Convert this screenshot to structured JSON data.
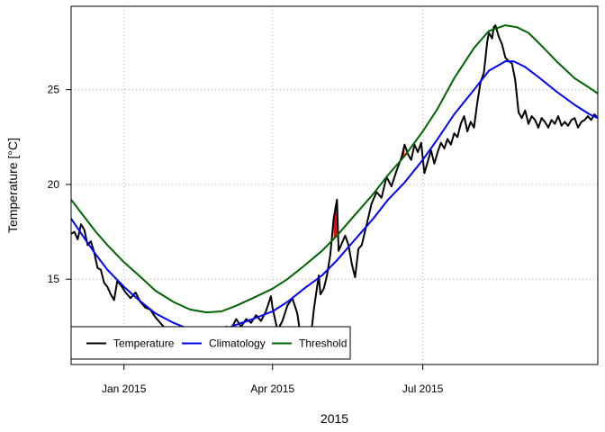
{
  "chart_data": {
    "type": "line",
    "title": "",
    "xlabel": "2015",
    "ylabel": "Temperature [°C]",
    "xlim": [
      "2014-11-30",
      "2015-10-15"
    ],
    "ylim": [
      10.5,
      29.4
    ],
    "grid": true,
    "legend_position": "bottom-left",
    "x_ticks": [
      {
        "date": "2015-01-01",
        "label": "Jan 2015"
      },
      {
        "date": "2015-04-01",
        "label": "Apr 2015"
      },
      {
        "date": "2015-07-01",
        "label": "Jul 2015"
      }
    ],
    "y_ticks": [
      15,
      20,
      25
    ],
    "highlight_color": "#ff0000",
    "series": [
      {
        "name": "Temperature",
        "color": "#000000",
        "points": [
          [
            "2014-11-30",
            17.4
          ],
          [
            "2014-12-02",
            17.5
          ],
          [
            "2014-12-04",
            17.1
          ],
          [
            "2014-12-06",
            17.9
          ],
          [
            "2014-12-08",
            17.6
          ],
          [
            "2014-12-10",
            16.8
          ],
          [
            "2014-12-12",
            17.0
          ],
          [
            "2014-12-14",
            16.4
          ],
          [
            "2014-12-16",
            15.6
          ],
          [
            "2014-12-18",
            15.5
          ],
          [
            "2014-12-20",
            14.8
          ],
          [
            "2014-12-22",
            14.6
          ],
          [
            "2014-12-24",
            14.2
          ],
          [
            "2014-12-26",
            13.9
          ],
          [
            "2014-12-28",
            14.9
          ],
          [
            "2014-12-30",
            14.7
          ],
          [
            "2015-01-02",
            14.3
          ],
          [
            "2015-01-05",
            14.0
          ],
          [
            "2015-01-08",
            14.3
          ],
          [
            "2015-01-11",
            13.8
          ],
          [
            "2015-01-14",
            13.5
          ],
          [
            "2015-01-17",
            13.4
          ],
          [
            "2015-01-20",
            13.0
          ],
          [
            "2015-01-23",
            12.7
          ],
          [
            "2015-01-26",
            12.4
          ],
          [
            "2015-01-29",
            12.1
          ],
          [
            "2015-02-01",
            11.8
          ],
          [
            "2015-02-10",
            11.8
          ],
          [
            "2015-02-20",
            11.8
          ],
          [
            "2015-03-01",
            11.8
          ],
          [
            "2015-03-04",
            12.5
          ],
          [
            "2015-03-07",
            12.4
          ],
          [
            "2015-03-10",
            12.9
          ],
          [
            "2015-03-13",
            12.5
          ],
          [
            "2015-03-16",
            12.9
          ],
          [
            "2015-03-19",
            12.7
          ],
          [
            "2015-03-22",
            13.1
          ],
          [
            "2015-03-25",
            12.8
          ],
          [
            "2015-03-28",
            13.3
          ],
          [
            "2015-03-31",
            14.1
          ],
          [
            "2015-04-01",
            13.5
          ],
          [
            "2015-04-04",
            12.3
          ],
          [
            "2015-04-07",
            12.8
          ],
          [
            "2015-04-10",
            13.6
          ],
          [
            "2015-04-13",
            14.0
          ],
          [
            "2015-04-16",
            13.2
          ],
          [
            "2015-04-18",
            12.0
          ],
          [
            "2015-04-20",
            12.3
          ],
          [
            "2015-04-22",
            11.9
          ],
          [
            "2015-04-24",
            11.8
          ],
          [
            "2015-04-26",
            13.4
          ],
          [
            "2015-04-28",
            14.6
          ],
          [
            "2015-04-29",
            15.2
          ],
          [
            "2015-04-30",
            14.2
          ],
          [
            "2015-05-02",
            14.5
          ],
          [
            "2015-05-04",
            15.2
          ],
          [
            "2015-05-06",
            16.3
          ],
          [
            "2015-05-08",
            18.2
          ],
          [
            "2015-05-10",
            19.2
          ],
          [
            "2015-05-11",
            16.5
          ],
          [
            "2015-05-13",
            16.9
          ],
          [
            "2015-05-15",
            17.3
          ],
          [
            "2015-05-17",
            16.8
          ],
          [
            "2015-05-19",
            15.8
          ],
          [
            "2015-05-21",
            15.1
          ],
          [
            "2015-05-23",
            16.6
          ],
          [
            "2015-05-25",
            16.8
          ],
          [
            "2015-05-28",
            17.9
          ],
          [
            "2015-05-31",
            19.0
          ],
          [
            "2015-06-03",
            19.6
          ],
          [
            "2015-06-06",
            19.3
          ],
          [
            "2015-06-09",
            20.4
          ],
          [
            "2015-06-12",
            19.9
          ],
          [
            "2015-06-15",
            20.7
          ],
          [
            "2015-06-18",
            21.4
          ],
          [
            "2015-06-20",
            22.1
          ],
          [
            "2015-06-22",
            21.6
          ],
          [
            "2015-06-24",
            21.3
          ],
          [
            "2015-06-26",
            22.1
          ],
          [
            "2015-06-28",
            21.7
          ],
          [
            "2015-06-30",
            22.2
          ],
          [
            "2015-07-02",
            20.6
          ],
          [
            "2015-07-04",
            21.2
          ],
          [
            "2015-07-06",
            21.8
          ],
          [
            "2015-07-08",
            21.1
          ],
          [
            "2015-07-10",
            21.7
          ],
          [
            "2015-07-12",
            22.2
          ],
          [
            "2015-07-14",
            21.9
          ],
          [
            "2015-07-16",
            22.4
          ],
          [
            "2015-07-18",
            22.1
          ],
          [
            "2015-07-20",
            22.7
          ],
          [
            "2015-07-22",
            22.5
          ],
          [
            "2015-07-24",
            23.2
          ],
          [
            "2015-07-26",
            23.6
          ],
          [
            "2015-07-28",
            22.8
          ],
          [
            "2015-07-30",
            23.3
          ],
          [
            "2015-08-01",
            23.0
          ],
          [
            "2015-08-03",
            24.3
          ],
          [
            "2015-08-05",
            25.4
          ],
          [
            "2015-08-07",
            25.9
          ],
          [
            "2015-08-09",
            27.5
          ],
          [
            "2015-08-10",
            28.0
          ],
          [
            "2015-08-12",
            27.7
          ],
          [
            "2015-08-13",
            28.3
          ],
          [
            "2015-08-14",
            28.4
          ],
          [
            "2015-08-16",
            27.8
          ],
          [
            "2015-08-18",
            27.4
          ],
          [
            "2015-08-20",
            26.7
          ],
          [
            "2015-08-22",
            26.5
          ],
          [
            "2015-08-24",
            26.4
          ],
          [
            "2015-08-26",
            25.5
          ],
          [
            "2015-08-28",
            23.8
          ],
          [
            "2015-08-30",
            23.5
          ],
          [
            "2015-09-01",
            23.9
          ],
          [
            "2015-09-03",
            23.2
          ],
          [
            "2015-09-05",
            23.6
          ],
          [
            "2015-09-07",
            23.4
          ],
          [
            "2015-09-09",
            23.0
          ],
          [
            "2015-09-11",
            23.5
          ],
          [
            "2015-09-13",
            23.3
          ],
          [
            "2015-09-15",
            23.0
          ],
          [
            "2015-09-17",
            23.4
          ],
          [
            "2015-09-19",
            23.2
          ],
          [
            "2015-09-21",
            23.6
          ],
          [
            "2015-09-23",
            23.1
          ],
          [
            "2015-09-25",
            23.3
          ],
          [
            "2015-09-27",
            23.1
          ],
          [
            "2015-09-29",
            23.4
          ],
          [
            "2015-10-01",
            23.5
          ],
          [
            "2015-10-03",
            23.0
          ],
          [
            "2015-10-05",
            23.3
          ],
          [
            "2015-10-07",
            23.4
          ],
          [
            "2015-10-09",
            23.6
          ],
          [
            "2015-10-11",
            23.4
          ],
          [
            "2015-10-13",
            23.7
          ],
          [
            "2015-10-15",
            23.5
          ]
        ]
      },
      {
        "name": "Climatology",
        "color": "#0000ff",
        "points": [
          [
            "2014-11-30",
            18.2
          ],
          [
            "2014-12-07",
            17.3
          ],
          [
            "2014-12-15",
            16.3
          ],
          [
            "2014-12-22",
            15.5
          ],
          [
            "2015-01-01",
            14.6
          ],
          [
            "2015-01-10",
            13.9
          ],
          [
            "2015-01-20",
            13.2
          ],
          [
            "2015-01-31",
            12.7
          ],
          [
            "2015-02-10",
            12.35
          ],
          [
            "2015-02-20",
            12.2
          ],
          [
            "2015-03-01",
            12.3
          ],
          [
            "2015-03-10",
            12.6
          ],
          [
            "2015-03-20",
            12.9
          ],
          [
            "2015-04-01",
            13.3
          ],
          [
            "2015-04-10",
            13.8
          ],
          [
            "2015-04-20",
            14.5
          ],
          [
            "2015-05-01",
            15.2
          ],
          [
            "2015-05-10",
            16.0
          ],
          [
            "2015-05-20",
            17.0
          ],
          [
            "2015-06-01",
            18.2
          ],
          [
            "2015-06-10",
            19.2
          ],
          [
            "2015-06-20",
            20.1
          ],
          [
            "2015-07-01",
            21.3
          ],
          [
            "2015-07-10",
            22.4
          ],
          [
            "2015-07-20",
            23.7
          ],
          [
            "2015-08-01",
            25.0
          ],
          [
            "2015-08-10",
            26.0
          ],
          [
            "2015-08-20",
            26.5
          ],
          [
            "2015-08-25",
            26.5
          ],
          [
            "2015-09-01",
            26.2
          ],
          [
            "2015-09-10",
            25.6
          ],
          [
            "2015-09-20",
            24.9
          ],
          [
            "2015-10-01",
            24.2
          ],
          [
            "2015-10-10",
            23.7
          ],
          [
            "2015-10-15",
            23.5
          ]
        ]
      },
      {
        "name": "Threshold",
        "color": "#006400",
        "points": [
          [
            "2014-11-30",
            19.2
          ],
          [
            "2014-12-07",
            18.4
          ],
          [
            "2014-12-15",
            17.5
          ],
          [
            "2014-12-22",
            16.8
          ],
          [
            "2015-01-01",
            15.9
          ],
          [
            "2015-01-10",
            15.2
          ],
          [
            "2015-01-20",
            14.4
          ],
          [
            "2015-01-31",
            13.8
          ],
          [
            "2015-02-10",
            13.4
          ],
          [
            "2015-02-20",
            13.25
          ],
          [
            "2015-03-01",
            13.3
          ],
          [
            "2015-03-10",
            13.6
          ],
          [
            "2015-03-20",
            14.0
          ],
          [
            "2015-04-01",
            14.5
          ],
          [
            "2015-04-10",
            15.0
          ],
          [
            "2015-04-20",
            15.7
          ],
          [
            "2015-05-01",
            16.5
          ],
          [
            "2015-05-10",
            17.3
          ],
          [
            "2015-05-20",
            18.3
          ],
          [
            "2015-06-01",
            19.5
          ],
          [
            "2015-06-10",
            20.5
          ],
          [
            "2015-06-20",
            21.5
          ],
          [
            "2015-07-01",
            22.8
          ],
          [
            "2015-07-10",
            24.0
          ],
          [
            "2015-07-20",
            25.6
          ],
          [
            "2015-08-01",
            27.2
          ],
          [
            "2015-08-10",
            28.1
          ],
          [
            "2015-08-20",
            28.4
          ],
          [
            "2015-08-27",
            28.3
          ],
          [
            "2015-09-03",
            28.0
          ],
          [
            "2015-09-10",
            27.4
          ],
          [
            "2015-09-20",
            26.5
          ],
          [
            "2015-10-01",
            25.6
          ],
          [
            "2015-10-10",
            25.1
          ],
          [
            "2015-10-15",
            24.8
          ]
        ]
      }
    ],
    "legend": [
      {
        "label": "Temperature",
        "color": "#000000"
      },
      {
        "label": "Climatology",
        "color": "#0000ff"
      },
      {
        "label": "Threshold",
        "color": "#006400"
      }
    ]
  }
}
